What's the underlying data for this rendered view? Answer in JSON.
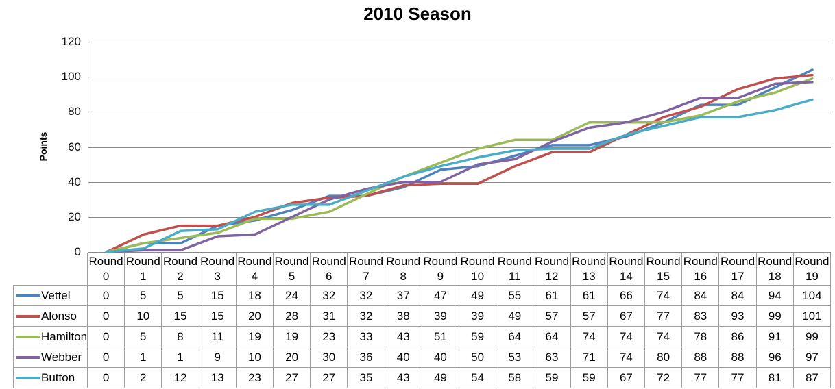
{
  "title": "2010 Season",
  "y_axis": {
    "label": "Points",
    "ticks": [
      120,
      100,
      80,
      60,
      40,
      20,
      0
    ]
  },
  "legend": [
    "Vettel",
    "Alonso",
    "Hamilton",
    "Webber",
    "Button"
  ],
  "chart_data": {
    "type": "line",
    "title": "2010 Season",
    "xlabel": "",
    "ylabel": "Points",
    "ylim": [
      0,
      120
    ],
    "ytick_interval": 20,
    "yticks": [
      0,
      20,
      40,
      60,
      80,
      100,
      120
    ],
    "grid": "horizontal",
    "legend_position": "data-table-left-column",
    "has_data_table": true,
    "categories": [
      "Round 0",
      "Round 1",
      "Round 2",
      "Round 3",
      "Round 4",
      "Round 5",
      "Round 6",
      "Round 7",
      "Round 8",
      "Round 9",
      "Round 10",
      "Round 11",
      "Round 12",
      "Round 13",
      "Round 14",
      "Round 15",
      "Round 16",
      "Round 17",
      "Round 18",
      "Round 19"
    ],
    "series": [
      {
        "name": "Vettel",
        "color": "#4F81BD",
        "values": [
          0,
          5,
          5,
          15,
          18,
          24,
          32,
          32,
          37,
          47,
          49,
          55,
          61,
          61,
          66,
          74,
          84,
          84,
          94,
          104
        ]
      },
      {
        "name": "Alonso",
        "color": "#C0504D",
        "values": [
          0,
          10,
          15,
          15,
          20,
          28,
          31,
          32,
          38,
          39,
          39,
          49,
          57,
          57,
          67,
          77,
          83,
          93,
          99,
          101
        ]
      },
      {
        "name": "Hamilton",
        "color": "#9BBB59",
        "values": [
          0,
          5,
          8,
          11,
          19,
          19,
          23,
          33,
          43,
          51,
          59,
          64,
          64,
          74,
          74,
          74,
          78,
          86,
          91,
          99
        ]
      },
      {
        "name": "Webber",
        "color": "#8064A2",
        "values": [
          0,
          1,
          1,
          9,
          10,
          20,
          30,
          36,
          40,
          40,
          50,
          53,
          63,
          71,
          74,
          80,
          88,
          88,
          96,
          97
        ]
      },
      {
        "name": "Button",
        "color": "#4BACC6",
        "values": [
          0,
          2,
          12,
          13,
          23,
          27,
          27,
          35,
          43,
          49,
          54,
          58,
          59,
          59,
          67,
          72,
          77,
          77,
          81,
          87
        ]
      }
    ],
    "gridline_color": "#8a8a8a",
    "table_border_color": "#9e9e9e"
  }
}
